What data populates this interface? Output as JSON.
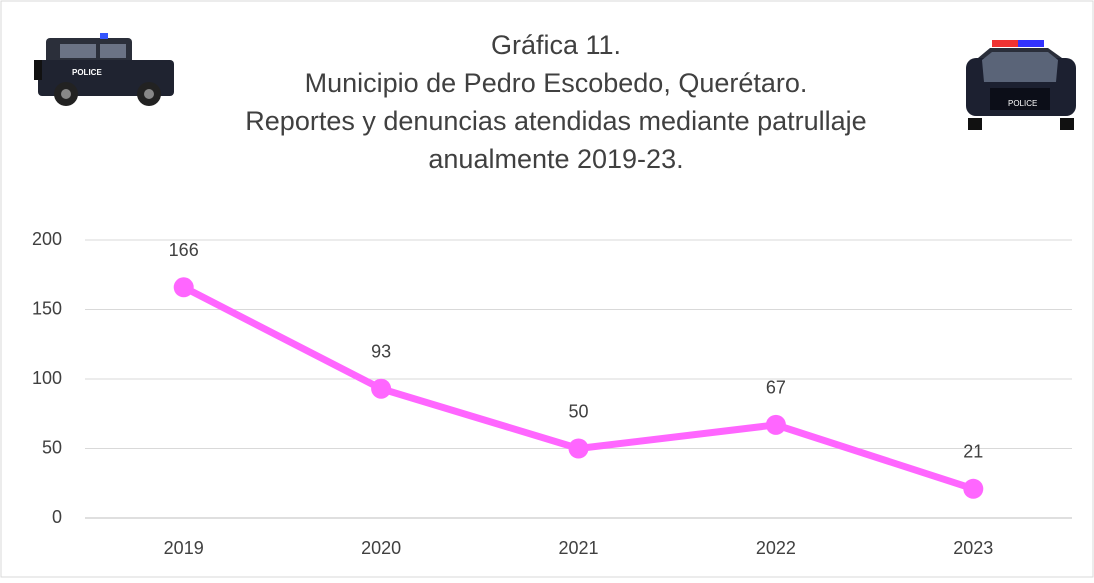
{
  "chart_data": {
    "type": "line",
    "title": [
      "Gráfica 11.",
      "Municipio de Pedro Escobedo, Querétaro.",
      "Reportes y denuncias atendidas mediante patrullaje",
      "anualmente 2019-23."
    ],
    "categories": [
      "2019",
      "2020",
      "2021",
      "2022",
      "2023"
    ],
    "values": [
      166,
      93,
      50,
      67,
      21
    ],
    "color": "#ff66ff",
    "ylim": [
      0,
      200
    ],
    "yticks": [
      0,
      50,
      100,
      150,
      200
    ],
    "grid": true
  }
}
